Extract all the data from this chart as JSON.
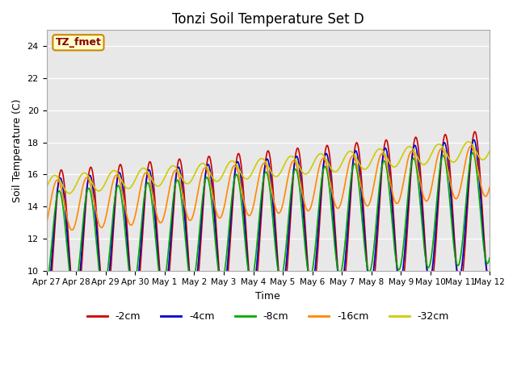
{
  "title": "Tonzi Soil Temperature Set D",
  "xlabel": "Time",
  "ylabel": "Soil Temperature (C)",
  "ylim": [
    10,
    25
  ],
  "yticks": [
    10,
    12,
    14,
    16,
    18,
    20,
    22,
    24
  ],
  "series_labels": [
    "-2cm",
    "-4cm",
    "-8cm",
    "-16cm",
    "-32cm"
  ],
  "series_colors": [
    "#cc0000",
    "#0000cc",
    "#00aa00",
    "#ff8800",
    "#cccc00"
  ],
  "annotation_text": "TZ_fmet",
  "annotation_bg": "#ffffcc",
  "annotation_border": "#cc8800",
  "background_color": "#e8e8e8",
  "x_tick_labels": [
    "Apr 27",
    "Apr 28",
    "Apr 29",
    "Apr 30",
    "May 1",
    "May 2",
    "May 3",
    "May 4",
    "May 5",
    "May 6",
    "May 7",
    "May 8",
    "May 9",
    "May 10",
    "May 11",
    "May 12"
  ],
  "n_days": 15,
  "points_per_day": 48
}
